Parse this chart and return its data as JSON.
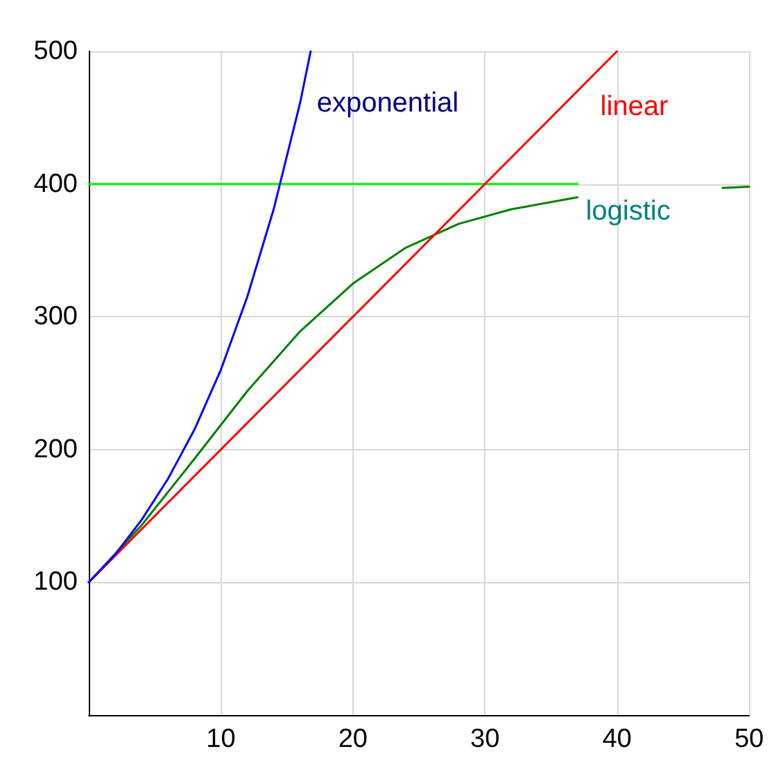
{
  "chart_data": {
    "type": "line",
    "xlim": [
      0,
      50
    ],
    "xticks": [
      10,
      20,
      30,
      40,
      50
    ],
    "ylim": [
      0,
      500
    ],
    "yticks": [
      100,
      200,
      300,
      400,
      500
    ],
    "grid": true,
    "marker": "none",
    "line_style": "solid",
    "series": [
      {
        "name": "exponential",
        "color": "#0000ff",
        "x": [
          0,
          2,
          4,
          6,
          8,
          10,
          12,
          14,
          16,
          16.8
        ],
        "values": [
          100,
          121,
          147,
          178,
          215,
          260,
          315,
          381,
          461,
          500
        ]
      },
      {
        "name": "linear",
        "color": "#ff0000",
        "x": [
          0,
          40
        ],
        "values": [
          100,
          500
        ]
      },
      {
        "name": "logistic",
        "color": "#008000",
        "x": [
          0,
          4,
          8,
          12,
          16,
          20,
          24,
          28,
          32,
          37,
          46,
          48,
          50
        ],
        "values": [
          100,
          143,
          193,
          244,
          289,
          325,
          352,
          370,
          381,
          390,
          null,
          397,
          398
        ]
      },
      {
        "color": "#00ff00",
        "x": [
          0,
          37
        ],
        "values": [
          400,
          400
        ]
      }
    ]
  }
}
